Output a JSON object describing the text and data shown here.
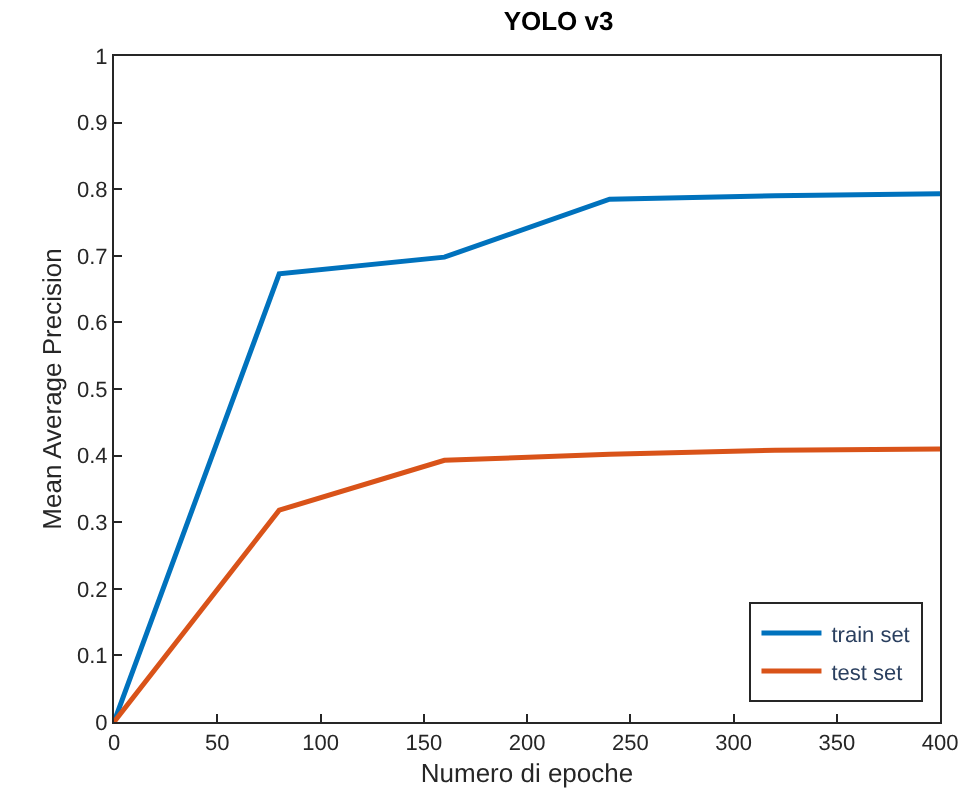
{
  "chart_data": {
    "type": "line",
    "title": "YOLO v3",
    "xlabel": "Numero di epoche",
    "ylabel": "Mean Average Precision",
    "x": [
      0,
      80,
      160,
      240,
      320,
      400
    ],
    "series": [
      {
        "name": "train set",
        "color": "#0072bd",
        "values": [
          0,
          0.673,
          0.698,
          0.785,
          0.79,
          0.793
        ]
      },
      {
        "name": "test set",
        "color": "#d95319",
        "values": [
          0,
          0.318,
          0.393,
          0.402,
          0.408,
          0.41
        ]
      }
    ],
    "xlim": [
      0,
      400
    ],
    "xticks": [
      0,
      50,
      100,
      150,
      200,
      250,
      300,
      350,
      400
    ],
    "ylim": [
      0,
      1
    ],
    "yticks": [
      0,
      0.1,
      0.2,
      0.3,
      0.4,
      0.5,
      0.6,
      0.7,
      0.8,
      0.9,
      1
    ],
    "grid": false,
    "legend": "bottom right",
    "marker": "none",
    "line_style": "solid"
  }
}
